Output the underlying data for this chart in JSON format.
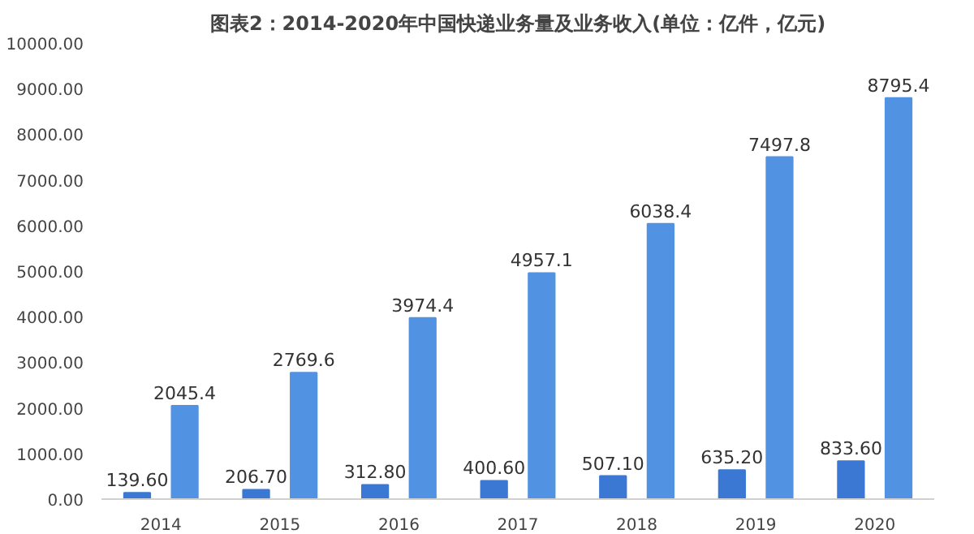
{
  "chart_data": {
    "type": "bar",
    "title": "图表2：2014-2020年中国快递业务量及业务收入(单位：亿件，亿元)",
    "categories": [
      "2014",
      "2015",
      "2016",
      "2017",
      "2018",
      "2019",
      "2020"
    ],
    "series": [
      {
        "color": "#3a78d4",
        "values": [
          139.6,
          206.7,
          312.8,
          400.6,
          507.1,
          635.2,
          833.6
        ],
        "value_labels": [
          "139.60",
          "206.70",
          "312.80",
          "400.60",
          "507.10",
          "635.20",
          "833.60"
        ]
      },
      {
        "color": "#5292e2",
        "values": [
          2045.4,
          2769.6,
          3974.4,
          4957.1,
          6038.4,
          7497.8,
          8795.4
        ],
        "value_labels": [
          "2045.4",
          "2769.6",
          "3974.4",
          "4957.1",
          "6038.4",
          "7497.8",
          "8795.4"
        ]
      }
    ],
    "ylim": [
      0,
      10000
    ],
    "yticks": [
      {
        "value": 0,
        "label": "0.00"
      },
      {
        "value": 1000,
        "label": "1000.00"
      },
      {
        "value": 2000,
        "label": "2000.00"
      },
      {
        "value": 3000,
        "label": "3000.00"
      },
      {
        "value": 4000,
        "label": "4000.00"
      },
      {
        "value": 5000,
        "label": "5000.00"
      },
      {
        "value": 6000,
        "label": "6000.00"
      },
      {
        "value": 7000,
        "label": "7000.00"
      },
      {
        "value": 8000,
        "label": "8000.00"
      },
      {
        "value": 9000,
        "label": "9000.00"
      },
      {
        "value": 10000,
        "label": "10000.00"
      }
    ],
    "stacked": false
  }
}
